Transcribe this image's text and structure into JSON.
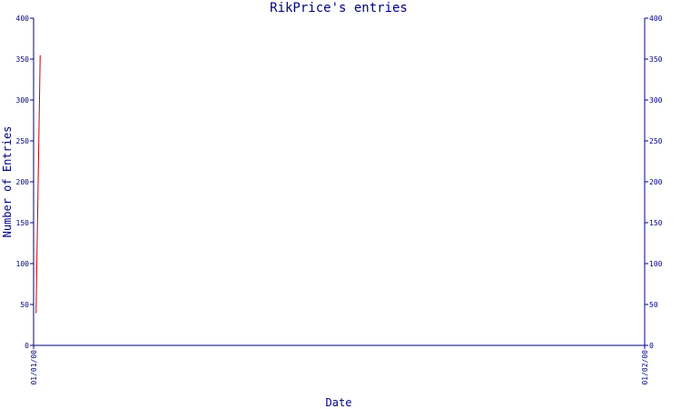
{
  "chart_data": {
    "type": "line",
    "title": "RikPrice's entries",
    "xlabel": "Date",
    "ylabel": "Number of Entries",
    "x_range": [
      "01/01/00",
      "01/02/00"
    ],
    "xticks": [
      "01/01/00",
      "01/02/00"
    ],
    "ylim": [
      0,
      400
    ],
    "yticks": [
      0,
      50,
      100,
      150,
      200,
      250,
      300,
      350,
      400
    ],
    "right_axis": true,
    "grid": false,
    "series": [
      {
        "color": "#cc0000",
        "points": [
          {
            "x": "01/01/00 03:00",
            "y": 40
          },
          {
            "x": "01/01/00 08:00",
            "y": 354
          }
        ]
      }
    ]
  },
  "colors": {
    "axis": "#000080",
    "text": "#000080",
    "line": "#cc0000"
  }
}
